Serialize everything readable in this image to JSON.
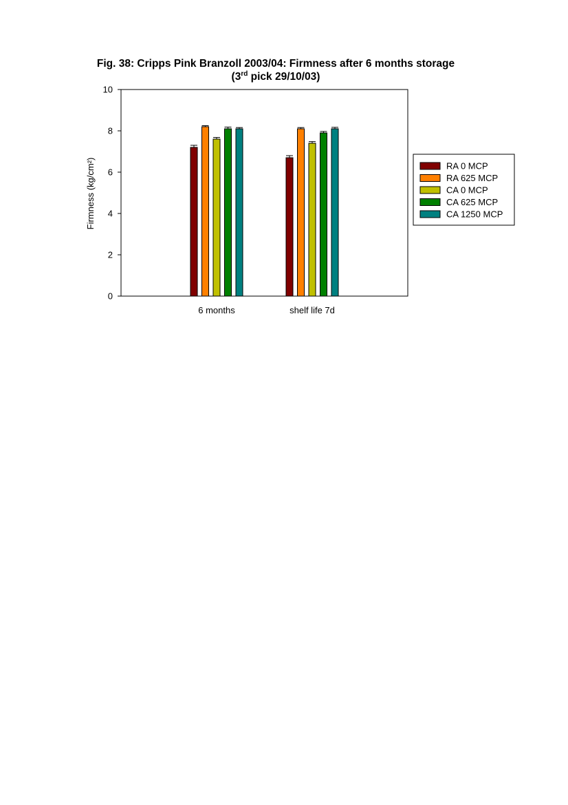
{
  "chart_data": {
    "type": "bar",
    "title_line1": "Fig. 38: Cripps Pink Branzoll 2003/04: Firmness after 6 months storage",
    "title_line2_prefix": "(3",
    "title_line2_sup": "rd",
    "title_line2_suffix": " pick 29/10/03)",
    "xlabel": "",
    "ylabel": "Firmness (kg/cm²)",
    "ylim": [
      0,
      10
    ],
    "yticks": [
      "0",
      "2",
      "4",
      "6",
      "8",
      "10"
    ],
    "categories": [
      "6 months",
      "shelf life 7d"
    ],
    "series": [
      {
        "name": "RA 0 MCP",
        "color": "#800000",
        "values": [
          7.2,
          6.7
        ],
        "errors": [
          0.1,
          0.1
        ]
      },
      {
        "name": "RA 625 MCP",
        "color": "#ff8000",
        "values": [
          8.2,
          8.1
        ],
        "errors": [
          0.05,
          0.06
        ]
      },
      {
        "name": "CA 0 MCP",
        "color": "#c0c000",
        "values": [
          7.6,
          7.4
        ],
        "errors": [
          0.08,
          0.08
        ]
      },
      {
        "name": "CA 625 MCP",
        "color": "#008000",
        "values": [
          8.1,
          7.9
        ],
        "errors": [
          0.08,
          0.07
        ]
      },
      {
        "name": "CA 1250 MCP",
        "color": "#008080",
        "values": [
          8.1,
          8.1
        ],
        "errors": [
          0.06,
          0.07
        ]
      }
    ],
    "grid": false,
    "legend_position": "right"
  }
}
